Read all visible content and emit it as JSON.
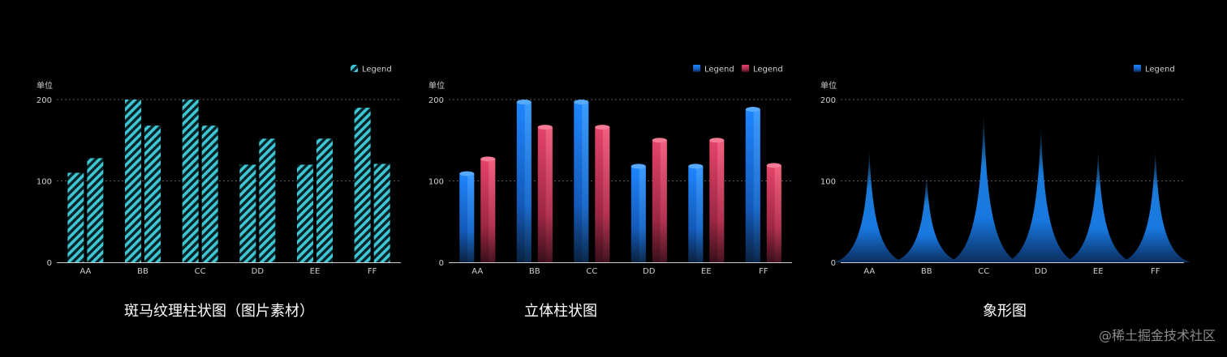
{
  "chart_data": [
    {
      "type": "bar",
      "style": "striped",
      "caption": "斑马纹理柱状图（图片素材）",
      "unit_label": "单位",
      "categories": [
        "AA",
        "BB",
        "CC",
        "DD",
        "EE",
        "FF"
      ],
      "series": [
        {
          "name": "Legend",
          "values": [
            110,
            200,
            200,
            120,
            120,
            190
          ],
          "color": "#3ec6d3"
        },
        {
          "values": [
            128,
            168,
            168,
            152,
            152,
            121
          ],
          "color": "#3ec6d3"
        }
      ],
      "yticks": [
        0,
        100,
        200
      ],
      "ylim": [
        0,
        200
      ],
      "legend": [
        "Legend"
      ],
      "legend_position": "top-right",
      "grid": "dotted-horizontal"
    },
    {
      "type": "bar",
      "style": "3d",
      "caption": "立体柱状图",
      "unit_label": "单位",
      "categories": [
        "AA",
        "BB",
        "CC",
        "DD",
        "EE",
        "FF"
      ],
      "series": [
        {
          "name": "Legend",
          "values": [
            109,
            197,
            197,
            118,
            118,
            188
          ],
          "color": "#1b7bf0"
        },
        {
          "name": "Legend",
          "values": [
            127,
            166,
            166,
            150,
            150,
            119
          ],
          "color": "#e0405f"
        }
      ],
      "yticks": [
        0,
        100,
        200
      ],
      "ylim": [
        0,
        200
      ],
      "legend": [
        "Legend",
        "Legend"
      ],
      "legend_position": "top-right",
      "grid": "dotted-horizontal"
    },
    {
      "type": "pictorial-bar",
      "style": "spike",
      "caption": "象形图",
      "unit_label": "单位",
      "categories": [
        "AA",
        "BB",
        "CC",
        "DD",
        "EE",
        "FF"
      ],
      "series": [
        {
          "name": "Legend",
          "values": [
            140,
            110,
            185,
            170,
            140,
            140
          ],
          "color": "#1b8cff"
        }
      ],
      "yticks": [
        0,
        100,
        200
      ],
      "ylim": [
        0,
        200
      ],
      "legend": [
        "Legend"
      ],
      "legend_position": "top-right",
      "grid": "dotted-horizontal"
    }
  ],
  "watermark": "@稀土掘金技术社区"
}
